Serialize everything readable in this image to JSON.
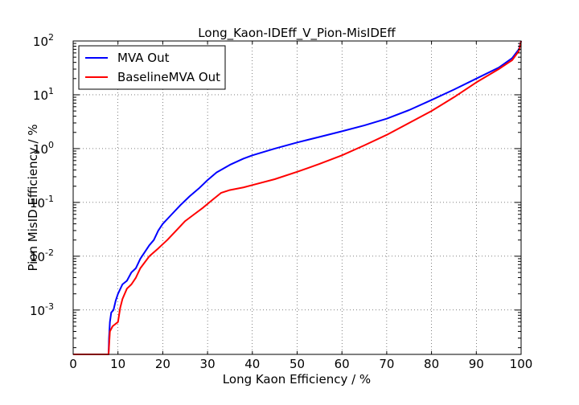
{
  "chart_data": {
    "type": "line",
    "title": "Long_Kaon-IDEff_V_Pion-MisIDEff",
    "xlabel": "Long Kaon Efficiency / %",
    "ylabel": "Pion MisID Efficiency / %",
    "xlim": [
      0,
      100
    ],
    "ylim": [
      0.00015,
      100
    ],
    "yscale": "log",
    "grid": true,
    "legend_position": "upper-left",
    "x_ticks": [
      "0",
      "10",
      "20",
      "30",
      "40",
      "50",
      "60",
      "70",
      "80",
      "90",
      "100"
    ],
    "y_ticks": [
      {
        "base": "10",
        "exp": "-3"
      },
      {
        "base": "10",
        "exp": "-2"
      },
      {
        "base": "10",
        "exp": "-1"
      },
      {
        "base": "10",
        "exp": "0"
      },
      {
        "base": "10",
        "exp": "1"
      },
      {
        "base": "10",
        "exp": "2"
      }
    ],
    "series": [
      {
        "name": "MVA Out",
        "color": "#0000ff",
        "points": [
          [
            0,
            0.00015
          ],
          [
            7.9,
            0.00015
          ],
          [
            8.0,
            0.0003
          ],
          [
            8.2,
            0.0006
          ],
          [
            8.5,
            0.0009
          ],
          [
            9.0,
            0.001
          ],
          [
            9.5,
            0.0015
          ],
          [
            10,
            0.002
          ],
          [
            11,
            0.003
          ],
          [
            12,
            0.0035
          ],
          [
            13,
            0.005
          ],
          [
            14,
            0.006
          ],
          [
            15,
            0.009
          ],
          [
            16,
            0.012
          ],
          [
            17,
            0.016
          ],
          [
            18,
            0.02
          ],
          [
            19,
            0.03
          ],
          [
            20,
            0.04
          ],
          [
            22,
            0.06
          ],
          [
            24,
            0.09
          ],
          [
            26,
            0.13
          ],
          [
            28,
            0.18
          ],
          [
            30,
            0.26
          ],
          [
            32,
            0.36
          ],
          [
            35,
            0.5
          ],
          [
            38,
            0.65
          ],
          [
            40,
            0.75
          ],
          [
            45,
            1.0
          ],
          [
            50,
            1.3
          ],
          [
            55,
            1.65
          ],
          [
            60,
            2.1
          ],
          [
            65,
            2.7
          ],
          [
            70,
            3.6
          ],
          [
            75,
            5.2
          ],
          [
            80,
            8.0
          ],
          [
            85,
            12.5
          ],
          [
            90,
            20
          ],
          [
            95,
            32
          ],
          [
            98,
            48
          ],
          [
            99.5,
            70
          ],
          [
            100,
            100
          ]
        ]
      },
      {
        "name": "BaselineMVA Out",
        "color": "#ff0000",
        "points": [
          [
            0,
            0.00015
          ],
          [
            7.9,
            0.00015
          ],
          [
            8.2,
            0.0004
          ],
          [
            8.8,
            0.0005
          ],
          [
            10,
            0.0006
          ],
          [
            10.5,
            0.0011
          ],
          [
            11,
            0.0016
          ],
          [
            12,
            0.0025
          ],
          [
            13,
            0.003
          ],
          [
            14,
            0.004
          ],
          [
            15,
            0.006
          ],
          [
            17,
            0.01
          ],
          [
            19,
            0.014
          ],
          [
            21,
            0.02
          ],
          [
            23,
            0.03
          ],
          [
            25,
            0.045
          ],
          [
            27,
            0.06
          ],
          [
            29,
            0.08
          ],
          [
            31,
            0.11
          ],
          [
            33,
            0.15
          ],
          [
            35,
            0.17
          ],
          [
            38,
            0.19
          ],
          [
            40,
            0.21
          ],
          [
            45,
            0.27
          ],
          [
            50,
            0.37
          ],
          [
            55,
            0.52
          ],
          [
            60,
            0.75
          ],
          [
            65,
            1.15
          ],
          [
            70,
            1.8
          ],
          [
            75,
            3.0
          ],
          [
            80,
            5.0
          ],
          [
            85,
            9.0
          ],
          [
            90,
            17
          ],
          [
            95,
            30
          ],
          [
            98,
            44
          ],
          [
            99.5,
            65
          ],
          [
            100,
            100
          ]
        ]
      }
    ]
  }
}
